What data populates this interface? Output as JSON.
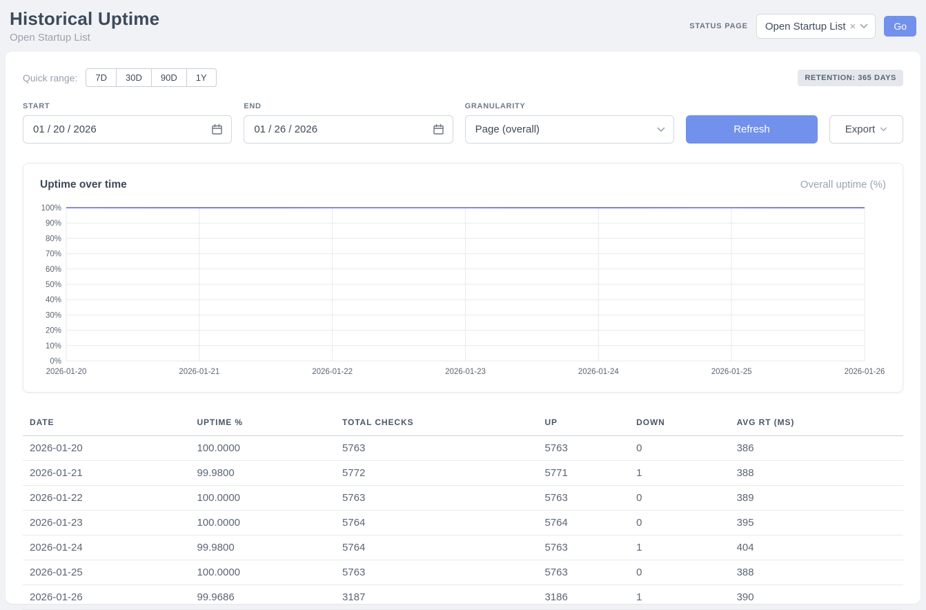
{
  "header": {
    "title": "Historical Uptime",
    "subtitle": "Open Startup List",
    "status_page_label": "STATUS PAGE",
    "status_page_value": "Open Startup List",
    "go_label": "Go"
  },
  "icons": {
    "clear": "×"
  },
  "controls": {
    "quick_range_label": "Quick range:",
    "quick_ranges": [
      "7D",
      "30D",
      "90D",
      "1Y"
    ],
    "retention_badge": "RETENTION: 365 DAYS",
    "start_label": "START",
    "start_value": "01 / 20 / 2026",
    "end_label": "END",
    "end_value": "01 / 26 / 2026",
    "granularity_label": "GRANULARITY",
    "granularity_value": "Page (overall)",
    "refresh_label": "Refresh",
    "export_label": "Export"
  },
  "chart": {
    "title": "Uptime over time",
    "legend": "Overall uptime (%)"
  },
  "chart_data": {
    "type": "line",
    "title": "Uptime over time",
    "x": [
      "2026-01-20",
      "2026-01-21",
      "2026-01-22",
      "2026-01-23",
      "2026-01-24",
      "2026-01-25",
      "2026-01-26"
    ],
    "series": [
      {
        "name": "Overall uptime (%)",
        "values": [
          100.0,
          99.98,
          100.0,
          100.0,
          99.98,
          100.0,
          99.9686
        ]
      }
    ],
    "ylim": [
      0,
      100
    ],
    "ytick_step": 10,
    "ytick_suffix": "%",
    "grid": true,
    "legend_position": "top-right",
    "line_color": "#5661f0"
  },
  "table": {
    "headers": [
      "DATE",
      "UPTIME %",
      "TOTAL CHECKS",
      "UP",
      "DOWN",
      "AVG RT (MS)"
    ],
    "rows": [
      [
        "2026-01-20",
        "100.0000",
        "5763",
        "5763",
        "0",
        "386"
      ],
      [
        "2026-01-21",
        "99.9800",
        "5772",
        "5771",
        "1",
        "388"
      ],
      [
        "2026-01-22",
        "100.0000",
        "5763",
        "5763",
        "0",
        "389"
      ],
      [
        "2026-01-23",
        "100.0000",
        "5764",
        "5764",
        "0",
        "395"
      ],
      [
        "2026-01-24",
        "99.9800",
        "5764",
        "5763",
        "1",
        "404"
      ],
      [
        "2026-01-25",
        "100.0000",
        "5763",
        "5763",
        "0",
        "388"
      ],
      [
        "2026-01-26",
        "99.9686",
        "3187",
        "3186",
        "1",
        "390"
      ]
    ]
  },
  "colors": {
    "accent": "#7291ec",
    "chart_line": "#5661f0",
    "grid_line": "#e7e9ee",
    "badge_bg": "#e4e7ec"
  }
}
